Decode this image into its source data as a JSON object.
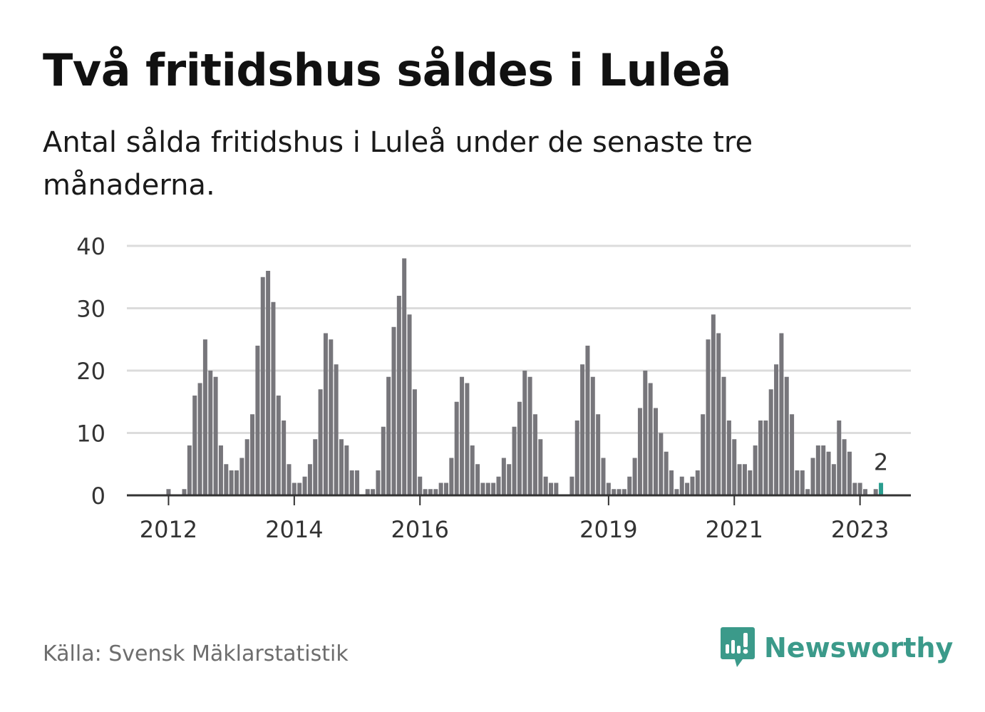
{
  "header": {
    "title": "Två fritidshus såldes i Luleå",
    "subtitle": "Antal sålda fritidshus i Luleå under de senaste tre månaderna."
  },
  "footer": {
    "source": "Källa: Svensk Mäklarstatistik",
    "brand": "Newsworthy"
  },
  "colors": {
    "bar": "#77767b",
    "highlight": "#2a9d8f",
    "grid": "#dcdcdc",
    "brand": "#3b9a8a"
  },
  "chart_data": {
    "type": "bar",
    "title": "Två fritidshus såldes i Luleå",
    "subtitle": "Antal sålda fritidshus i Luleå under de senaste tre månaderna.",
    "xlabel": "",
    "ylabel": "",
    "ylim": [
      0,
      40
    ],
    "yticks": [
      0,
      10,
      20,
      30,
      40
    ],
    "grid": true,
    "legend": "none",
    "x_tick_labels": [
      {
        "label": "2012",
        "index": 7
      },
      {
        "label": "2014",
        "index": 31
      },
      {
        "label": "2016",
        "index": 55
      },
      {
        "label": "2019",
        "index": 91
      },
      {
        "label": "2021",
        "index": 115
      },
      {
        "label": "2023",
        "index": 139
      }
    ],
    "values": [
      0,
      0,
      0,
      0,
      0,
      0,
      0,
      1,
      0,
      0,
      1,
      8,
      16,
      18,
      25,
      20,
      19,
      8,
      5,
      4,
      4,
      6,
      9,
      13,
      24,
      35,
      36,
      31,
      16,
      12,
      5,
      2,
      2,
      3,
      5,
      9,
      17,
      26,
      25,
      21,
      9,
      8,
      4,
      4,
      0,
      1,
      1,
      4,
      11,
      19,
      27,
      32,
      38,
      29,
      17,
      3,
      1,
      1,
      1,
      2,
      2,
      6,
      15,
      19,
      18,
      8,
      5,
      2,
      2,
      2,
      3,
      6,
      5,
      11,
      15,
      20,
      19,
      13,
      9,
      3,
      2,
      2,
      0,
      0,
      3,
      12,
      21,
      24,
      19,
      13,
      6,
      2,
      1,
      1,
      1,
      3,
      6,
      14,
      20,
      18,
      14,
      10,
      7,
      4,
      1,
      3,
      2,
      3,
      4,
      13,
      25,
      29,
      26,
      19,
      12,
      9,
      5,
      5,
      4,
      8,
      12,
      12,
      17,
      21,
      26,
      19,
      13,
      4,
      4,
      1,
      6,
      8,
      8,
      7,
      5,
      12,
      9,
      7,
      2,
      2,
      1,
      0,
      1,
      2
    ],
    "highlight": {
      "index": 143,
      "value": 2,
      "label": "2"
    }
  }
}
